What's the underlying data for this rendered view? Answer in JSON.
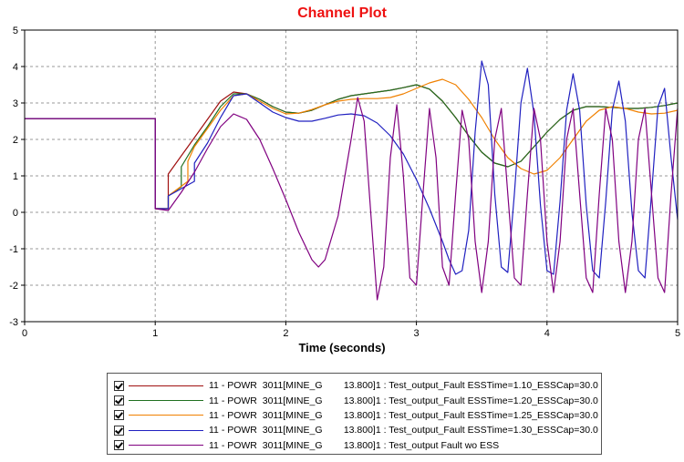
{
  "chart_data": {
    "type": "line",
    "title": "Channel Plot",
    "title_color": "#ee1111",
    "xlabel": "Time (seconds)",
    "ylabel": "",
    "xlim": [
      0,
      5
    ],
    "ylim": [
      -3,
      5
    ],
    "x_ticks": [
      "0",
      "1",
      "2",
      "3",
      "4",
      "5"
    ],
    "y_ticks": [
      "-3",
      "-2",
      "-1",
      "0",
      "1",
      "2",
      "3",
      "4",
      "5"
    ],
    "grid": true,
    "legend_position": "bottom",
    "series": [
      {
        "name": "11 - POWR  3011[MINE_G        13.800]1 : Test_output_Fault ESSTime=1.10_ESSCap=30.0",
        "color": "#a01010",
        "points": [
          [
            0,
            2.57
          ],
          [
            1.0,
            2.57
          ],
          [
            1.0,
            0.1
          ],
          [
            1.1,
            0.1
          ],
          [
            1.1,
            1.05
          ],
          [
            1.2,
            1.55
          ],
          [
            1.3,
            2.05
          ],
          [
            1.4,
            2.55
          ],
          [
            1.5,
            3.05
          ],
          [
            1.6,
            3.3
          ],
          [
            1.7,
            3.25
          ],
          [
            1.8,
            3.1
          ],
          [
            1.9,
            2.9
          ],
          [
            2.0,
            2.75
          ],
          [
            2.1,
            2.72
          ],
          [
            2.2,
            2.8
          ],
          [
            2.3,
            2.95
          ],
          [
            2.4,
            3.1
          ],
          [
            2.5,
            3.2
          ],
          [
            2.6,
            3.25
          ],
          [
            2.7,
            3.3
          ],
          [
            2.8,
            3.35
          ],
          [
            2.9,
            3.42
          ],
          [
            3.0,
            3.5
          ],
          [
            3.1,
            3.38
          ],
          [
            3.2,
            3.05
          ],
          [
            3.3,
            2.6
          ],
          [
            3.4,
            2.1
          ],
          [
            3.5,
            1.65
          ],
          [
            3.6,
            1.35
          ],
          [
            3.7,
            1.25
          ],
          [
            3.8,
            1.4
          ],
          [
            3.9,
            1.8
          ],
          [
            4.0,
            2.2
          ],
          [
            4.1,
            2.55
          ],
          [
            4.2,
            2.8
          ],
          [
            4.3,
            2.9
          ],
          [
            4.4,
            2.9
          ],
          [
            4.5,
            2.88
          ],
          [
            4.6,
            2.85
          ],
          [
            4.7,
            2.85
          ],
          [
            4.8,
            2.88
          ],
          [
            4.9,
            2.93
          ],
          [
            5.0,
            3.0
          ]
        ]
      },
      {
        "name": "11 - POWR  3011[MINE_G        13.800]1 : Test_output_Fault ESSTime=1.20_ESSCap=30.0",
        "color": "#207020",
        "points": [
          [
            0,
            2.57
          ],
          [
            1.0,
            2.57
          ],
          [
            1.0,
            0.1
          ],
          [
            1.1,
            0.1
          ],
          [
            1.1,
            0.45
          ],
          [
            1.2,
            0.7
          ],
          [
            1.2,
            1.25
          ],
          [
            1.3,
            1.85
          ],
          [
            1.4,
            2.35
          ],
          [
            1.5,
            2.9
          ],
          [
            1.6,
            3.25
          ],
          [
            1.7,
            3.25
          ],
          [
            1.8,
            3.1
          ],
          [
            1.9,
            2.9
          ],
          [
            2.0,
            2.75
          ],
          [
            2.1,
            2.72
          ],
          [
            2.2,
            2.8
          ],
          [
            2.3,
            2.95
          ],
          [
            2.4,
            3.1
          ],
          [
            2.5,
            3.2
          ],
          [
            2.6,
            3.25
          ],
          [
            2.7,
            3.3
          ],
          [
            2.8,
            3.35
          ],
          [
            2.9,
            3.42
          ],
          [
            3.0,
            3.5
          ],
          [
            3.1,
            3.38
          ],
          [
            3.2,
            3.05
          ],
          [
            3.3,
            2.6
          ],
          [
            3.4,
            2.1
          ],
          [
            3.5,
            1.65
          ],
          [
            3.6,
            1.35
          ],
          [
            3.7,
            1.25
          ],
          [
            3.8,
            1.4
          ],
          [
            3.9,
            1.8
          ],
          [
            4.0,
            2.2
          ],
          [
            4.1,
            2.55
          ],
          [
            4.2,
            2.8
          ],
          [
            4.3,
            2.9
          ],
          [
            4.4,
            2.9
          ],
          [
            4.5,
            2.88
          ],
          [
            4.6,
            2.85
          ],
          [
            4.7,
            2.85
          ],
          [
            4.8,
            2.88
          ],
          [
            4.9,
            2.93
          ],
          [
            5.0,
            3.0
          ]
        ]
      },
      {
        "name": "11 - POWR  3011[MINE_G        13.800]1 : Test_output_Fault ESSTime=1.25_ESSCap=30.0",
        "color": "#f08000",
        "points": [
          [
            0,
            2.57
          ],
          [
            1.0,
            2.57
          ],
          [
            1.0,
            0.1
          ],
          [
            1.1,
            0.1
          ],
          [
            1.1,
            0.45
          ],
          [
            1.25,
            0.85
          ],
          [
            1.25,
            1.4
          ],
          [
            1.3,
            1.8
          ],
          [
            1.4,
            2.3
          ],
          [
            1.5,
            2.8
          ],
          [
            1.6,
            3.2
          ],
          [
            1.7,
            3.25
          ],
          [
            1.8,
            3.05
          ],
          [
            1.9,
            2.85
          ],
          [
            2.0,
            2.7
          ],
          [
            2.1,
            2.72
          ],
          [
            2.2,
            2.82
          ],
          [
            2.3,
            2.95
          ],
          [
            2.4,
            3.05
          ],
          [
            2.5,
            3.1
          ],
          [
            2.6,
            3.12
          ],
          [
            2.7,
            3.12
          ],
          [
            2.8,
            3.15
          ],
          [
            2.9,
            3.25
          ],
          [
            3.0,
            3.4
          ],
          [
            3.1,
            3.55
          ],
          [
            3.2,
            3.65
          ],
          [
            3.3,
            3.5
          ],
          [
            3.4,
            3.1
          ],
          [
            3.5,
            2.6
          ],
          [
            3.6,
            2.0
          ],
          [
            3.7,
            1.5
          ],
          [
            3.8,
            1.2
          ],
          [
            3.9,
            1.05
          ],
          [
            4.0,
            1.15
          ],
          [
            4.1,
            1.5
          ],
          [
            4.2,
            2.0
          ],
          [
            4.3,
            2.5
          ],
          [
            4.4,
            2.8
          ],
          [
            4.5,
            2.9
          ],
          [
            4.6,
            2.85
          ],
          [
            4.7,
            2.75
          ],
          [
            4.8,
            2.7
          ],
          [
            4.9,
            2.72
          ],
          [
            5.0,
            2.8
          ]
        ]
      },
      {
        "name": "11 - POWR  3011[MINE_G        13.800]1 : Test_output_Fault ESSTime=1.30_ESSCap=30.0",
        "color": "#2020c0",
        "points": [
          [
            0,
            2.57
          ],
          [
            1.0,
            2.57
          ],
          [
            1.0,
            0.1
          ],
          [
            1.1,
            0.1
          ],
          [
            1.1,
            0.45
          ],
          [
            1.3,
            0.85
          ],
          [
            1.3,
            1.35
          ],
          [
            1.4,
            1.9
          ],
          [
            1.5,
            2.6
          ],
          [
            1.6,
            3.2
          ],
          [
            1.7,
            3.25
          ],
          [
            1.8,
            3.0
          ],
          [
            1.9,
            2.75
          ],
          [
            2.0,
            2.6
          ],
          [
            2.1,
            2.5
          ],
          [
            2.2,
            2.5
          ],
          [
            2.3,
            2.58
          ],
          [
            2.4,
            2.67
          ],
          [
            2.5,
            2.7
          ],
          [
            2.6,
            2.65
          ],
          [
            2.7,
            2.45
          ],
          [
            2.8,
            2.1
          ],
          [
            2.9,
            1.6
          ],
          [
            3.0,
            0.9
          ],
          [
            3.1,
            0.1
          ],
          [
            3.2,
            -0.8
          ],
          [
            3.25,
            -1.3
          ],
          [
            3.3,
            -1.7
          ],
          [
            3.35,
            -1.6
          ],
          [
            3.4,
            -0.5
          ],
          [
            3.45,
            2.2
          ],
          [
            3.5,
            4.15
          ],
          [
            3.55,
            3.5
          ],
          [
            3.6,
            0.5
          ],
          [
            3.65,
            -1.5
          ],
          [
            3.7,
            -1.65
          ],
          [
            3.75,
            0.5
          ],
          [
            3.8,
            3.0
          ],
          [
            3.85,
            3.95
          ],
          [
            3.9,
            2.7
          ],
          [
            3.95,
            0.2
          ],
          [
            4.0,
            -1.6
          ],
          [
            4.05,
            -1.7
          ],
          [
            4.1,
            0.3
          ],
          [
            4.15,
            2.8
          ],
          [
            4.2,
            3.8
          ],
          [
            4.25,
            2.8
          ],
          [
            4.3,
            0.2
          ],
          [
            4.35,
            -1.6
          ],
          [
            4.4,
            -1.8
          ],
          [
            4.45,
            0.3
          ],
          [
            4.5,
            2.8
          ],
          [
            4.55,
            3.6
          ],
          [
            4.6,
            2.5
          ],
          [
            4.65,
            0.0
          ],
          [
            4.7,
            -1.6
          ],
          [
            4.75,
            -1.8
          ],
          [
            4.8,
            0.5
          ],
          [
            4.85,
            2.9
          ],
          [
            4.9,
            3.4
          ],
          [
            4.95,
            1.5
          ],
          [
            5.0,
            -0.2
          ]
        ]
      },
      {
        "name": "11 - POWR  3011[MINE_G        13.800]1 : Test_output Fault wo ESS",
        "color": "#800080",
        "points": [
          [
            0,
            2.57
          ],
          [
            1.0,
            2.57
          ],
          [
            1.0,
            0.1
          ],
          [
            1.1,
            0.05
          ],
          [
            1.2,
            0.55
          ],
          [
            1.3,
            1.1
          ],
          [
            1.4,
            1.75
          ],
          [
            1.5,
            2.35
          ],
          [
            1.6,
            2.7
          ],
          [
            1.7,
            2.55
          ],
          [
            1.8,
            2.0
          ],
          [
            1.9,
            1.2
          ],
          [
            2.0,
            0.35
          ],
          [
            2.1,
            -0.55
          ],
          [
            2.2,
            -1.3
          ],
          [
            2.25,
            -1.5
          ],
          [
            2.3,
            -1.3
          ],
          [
            2.4,
            -0.1
          ],
          [
            2.5,
            2.0
          ],
          [
            2.55,
            3.15
          ],
          [
            2.6,
            2.5
          ],
          [
            2.65,
            0.0
          ],
          [
            2.7,
            -2.4
          ],
          [
            2.75,
            -1.5
          ],
          [
            2.8,
            1.5
          ],
          [
            2.85,
            2.95
          ],
          [
            2.9,
            1.0
          ],
          [
            2.95,
            -1.8
          ],
          [
            3.0,
            -2.0
          ],
          [
            3.05,
            0.5
          ],
          [
            3.1,
            2.85
          ],
          [
            3.15,
            1.5
          ],
          [
            3.2,
            -1.5
          ],
          [
            3.25,
            -2.0
          ],
          [
            3.3,
            0.5
          ],
          [
            3.35,
            2.8
          ],
          [
            3.4,
            2.0
          ],
          [
            3.45,
            -0.8
          ],
          [
            3.5,
            -2.2
          ],
          [
            3.55,
            -0.8
          ],
          [
            3.6,
            2.0
          ],
          [
            3.65,
            2.85
          ],
          [
            3.7,
            0.5
          ],
          [
            3.75,
            -1.8
          ],
          [
            3.8,
            -2.0
          ],
          [
            3.85,
            0.5
          ],
          [
            3.9,
            2.85
          ],
          [
            3.95,
            2.0
          ],
          [
            4.0,
            -0.8
          ],
          [
            4.05,
            -2.2
          ],
          [
            4.1,
            -0.8
          ],
          [
            4.15,
            2.0
          ],
          [
            4.2,
            2.85
          ],
          [
            4.25,
            0.5
          ],
          [
            4.3,
            -1.8
          ],
          [
            4.35,
            -2.2
          ],
          [
            4.4,
            0.5
          ],
          [
            4.45,
            2.85
          ],
          [
            4.5,
            2.0
          ],
          [
            4.55,
            -0.8
          ],
          [
            4.6,
            -2.2
          ],
          [
            4.65,
            -0.8
          ],
          [
            4.7,
            2.0
          ],
          [
            4.75,
            2.85
          ],
          [
            4.8,
            0.5
          ],
          [
            4.85,
            -1.8
          ],
          [
            4.9,
            -2.2
          ],
          [
            4.95,
            0.5
          ],
          [
            5.0,
            2.85
          ]
        ]
      }
    ]
  }
}
